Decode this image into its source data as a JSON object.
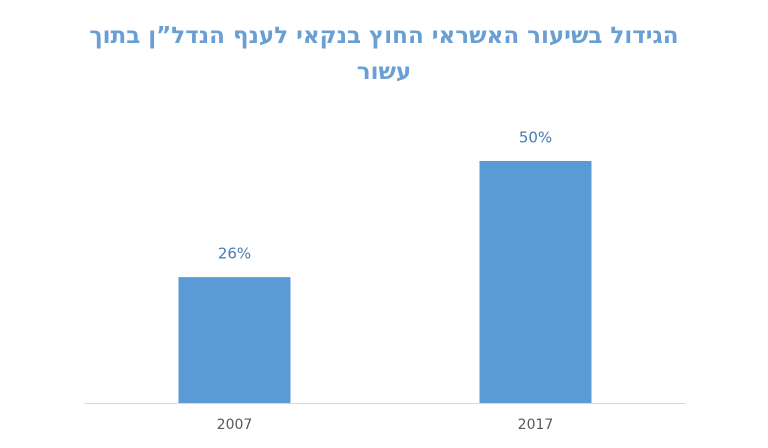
{
  "chart_data": {
    "type": "bar",
    "title": "הגידול בשיעור האשראי החוץ בנקאי לענף הנדל”ן בתוך עשור",
    "categories": [
      "2007",
      "2017"
    ],
    "values": [
      26,
      50
    ],
    "value_labels": [
      "26%",
      "50%"
    ],
    "color": "#5b9bd5"
  }
}
